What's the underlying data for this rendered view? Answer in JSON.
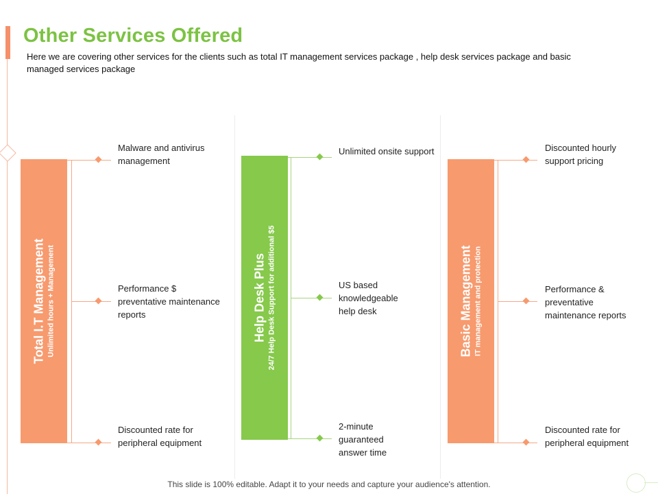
{
  "header": {
    "title": "Other Services Offered",
    "subtitle": "Here we are covering other services for the clients such as total IT management services package , help desk services package and basic managed services package"
  },
  "colors": {
    "orange": "#f79a6e",
    "green": "#86c94b",
    "title_green": "#7cc243"
  },
  "packages": [
    {
      "name": "Total I.T Management",
      "subtitle": "Unlimited hours + Management",
      "color": "#f79a6e",
      "items": [
        "Malware and antivirus management",
        "Performance $ preventative maintenance reports",
        "Discounted rate for peripheral equipment"
      ]
    },
    {
      "name": "Help Desk Plus",
      "subtitle": "24/7 Help Desk Support for additional $5",
      "color": "#86c94b",
      "items": [
        "Unlimited onsite support",
        "US based knowledgeable help desk",
        "2-minute guaranteed answer time"
      ]
    },
    {
      "name": "Basic Management",
      "subtitle": "IT management and protection",
      "color": "#f79a6e",
      "items": [
        "Discounted hourly support pricing",
        "Performance & preventative maintenance reports",
        "Discounted rate for peripheral equipment"
      ]
    }
  ],
  "footer": {
    "note": "This slide is 100% editable. Adapt it to your needs and capture your audience's attention."
  }
}
